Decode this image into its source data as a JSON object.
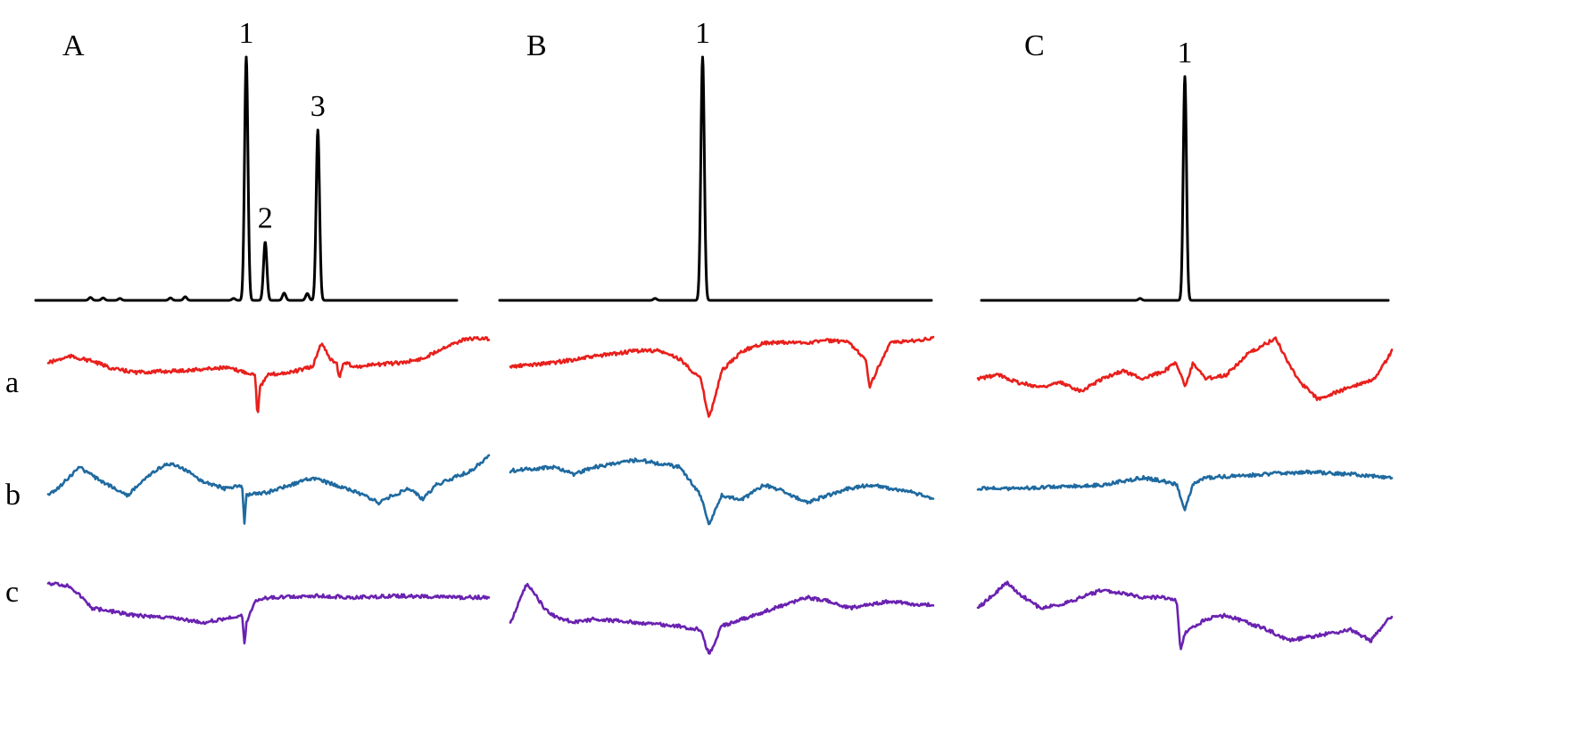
{
  "colors": {
    "chromatogram": "#000000",
    "trace_a": "#e8201c",
    "trace_b": "#1f6aa0",
    "trace_c": "#6a22b0"
  },
  "chart_data": {
    "type": "line",
    "xlabel": "",
    "ylabel": "",
    "grid": false,
    "axes_visible": false,
    "row_labels": [
      "a",
      "b",
      "c"
    ],
    "panels": [
      {
        "label": "A",
        "chromatogram": {
          "peaks": [
            {
              "label": "1",
              "position": 0.5,
              "height": 1.0
            },
            {
              "label": "2",
              "position": 0.545,
              "height": 0.24
            },
            {
              "label": "3",
              "position": 0.67,
              "height": 0.7
            }
          ],
          "minor_peaks": [
            {
              "position": 0.13,
              "height": 0.012
            },
            {
              "position": 0.16,
              "height": 0.01
            },
            {
              "position": 0.2,
              "height": 0.008
            },
            {
              "position": 0.32,
              "height": 0.01
            },
            {
              "position": 0.355,
              "height": 0.015
            },
            {
              "position": 0.47,
              "height": 0.008
            },
            {
              "position": 0.59,
              "height": 0.03
            },
            {
              "position": 0.645,
              "height": 0.028
            }
          ]
        },
        "traces": [
          {
            "row": "a",
            "points": [
              [
                0,
                0.3
              ],
              [
                0.05,
                0.22
              ],
              [
                0.1,
                0.28
              ],
              [
                0.15,
                0.38
              ],
              [
                0.2,
                0.42
              ],
              [
                0.3,
                0.4
              ],
              [
                0.4,
                0.36
              ],
              [
                0.45,
                0.42
              ],
              [
                0.47,
                0.45
              ],
              [
                0.475,
                1.0
              ],
              [
                0.48,
                0.6
              ],
              [
                0.5,
                0.45
              ],
              [
                0.55,
                0.42
              ],
              [
                0.6,
                0.35
              ],
              [
                0.62,
                0.05
              ],
              [
                0.64,
                0.25
              ],
              [
                0.655,
                0.3
              ],
              [
                0.66,
                0.5
              ],
              [
                0.67,
                0.3
              ],
              [
                0.7,
                0.35
              ],
              [
                0.75,
                0.32
              ],
              [
                0.8,
                0.3
              ],
              [
                0.85,
                0.25
              ],
              [
                0.9,
                0.1
              ],
              [
                0.95,
                0.0
              ],
              [
                1.0,
                0.0
              ]
            ]
          },
          {
            "row": "b",
            "points": [
              [
                0,
                0.55
              ],
              [
                0.03,
                0.4
              ],
              [
                0.07,
                0.15
              ],
              [
                0.12,
                0.35
              ],
              [
                0.18,
                0.55
              ],
              [
                0.22,
                0.3
              ],
              [
                0.27,
                0.1
              ],
              [
                0.3,
                0.15
              ],
              [
                0.35,
                0.35
              ],
              [
                0.4,
                0.45
              ],
              [
                0.44,
                0.4
              ],
              [
                0.445,
                0.95
              ],
              [
                0.45,
                0.55
              ],
              [
                0.5,
                0.5
              ],
              [
                0.55,
                0.4
              ],
              [
                0.6,
                0.3
              ],
              [
                0.65,
                0.4
              ],
              [
                0.7,
                0.5
              ],
              [
                0.75,
                0.65
              ],
              [
                0.78,
                0.55
              ],
              [
                0.82,
                0.45
              ],
              [
                0.85,
                0.6
              ],
              [
                0.88,
                0.4
              ],
              [
                0.92,
                0.3
              ],
              [
                0.96,
                0.2
              ],
              [
                1.0,
                0.0
              ]
            ]
          },
          {
            "row": "c",
            "points": [
              [
                0,
                0.0
              ],
              [
                0.05,
                0.05
              ],
              [
                0.1,
                0.35
              ],
              [
                0.15,
                0.4
              ],
              [
                0.2,
                0.45
              ],
              [
                0.3,
                0.5
              ],
              [
                0.35,
                0.55
              ],
              [
                0.4,
                0.5
              ],
              [
                0.44,
                0.45
              ],
              [
                0.445,
                0.85
              ],
              [
                0.45,
                0.55
              ],
              [
                0.47,
                0.25
              ],
              [
                0.5,
                0.2
              ],
              [
                0.6,
                0.18
              ],
              [
                0.7,
                0.2
              ],
              [
                0.8,
                0.18
              ],
              [
                0.9,
                0.2
              ],
              [
                1.0,
                0.2
              ]
            ]
          }
        ]
      },
      {
        "label": "B",
        "chromatogram": {
          "peaks": [
            {
              "label": "1",
              "position": 0.47,
              "height": 1.0
            }
          ],
          "minor_peaks": [
            {
              "position": 0.36,
              "height": 0.008
            }
          ]
        },
        "traces": [
          {
            "row": "a",
            "points": [
              [
                0,
                0.35
              ],
              [
                0.1,
                0.3
              ],
              [
                0.2,
                0.22
              ],
              [
                0.3,
                0.15
              ],
              [
                0.35,
                0.15
              ],
              [
                0.4,
                0.25
              ],
              [
                0.45,
                0.5
              ],
              [
                0.47,
                1.0
              ],
              [
                0.5,
                0.4
              ],
              [
                0.55,
                0.15
              ],
              [
                0.6,
                0.05
              ],
              [
                0.7,
                0.05
              ],
              [
                0.75,
                0.02
              ],
              [
                0.8,
                0.05
              ],
              [
                0.84,
                0.25
              ],
              [
                0.85,
                0.6
              ],
              [
                0.87,
                0.35
              ],
              [
                0.9,
                0.05
              ],
              [
                1.0,
                0.0
              ]
            ]
          },
          {
            "row": "b",
            "points": [
              [
                0,
                0.2
              ],
              [
                0.1,
                0.15
              ],
              [
                0.15,
                0.25
              ],
              [
                0.2,
                0.15
              ],
              [
                0.25,
                0.1
              ],
              [
                0.3,
                0.05
              ],
              [
                0.35,
                0.1
              ],
              [
                0.4,
                0.15
              ],
              [
                0.42,
                0.3
              ],
              [
                0.45,
                0.55
              ],
              [
                0.47,
                0.95
              ],
              [
                0.5,
                0.55
              ],
              [
                0.55,
                0.6
              ],
              [
                0.6,
                0.4
              ],
              [
                0.65,
                0.5
              ],
              [
                0.7,
                0.65
              ],
              [
                0.75,
                0.55
              ],
              [
                0.8,
                0.45
              ],
              [
                0.85,
                0.4
              ],
              [
                0.9,
                0.45
              ],
              [
                0.95,
                0.5
              ],
              [
                1.0,
                0.6
              ]
            ]
          },
          {
            "row": "c",
            "points": [
              [
                0,
                0.55
              ],
              [
                0.04,
                0.0
              ],
              [
                0.08,
                0.35
              ],
              [
                0.1,
                0.45
              ],
              [
                0.15,
                0.55
              ],
              [
                0.2,
                0.5
              ],
              [
                0.3,
                0.55
              ],
              [
                0.4,
                0.6
              ],
              [
                0.45,
                0.65
              ],
              [
                0.47,
                1.0
              ],
              [
                0.5,
                0.6
              ],
              [
                0.55,
                0.5
              ],
              [
                0.6,
                0.4
              ],
              [
                0.65,
                0.3
              ],
              [
                0.7,
                0.2
              ],
              [
                0.75,
                0.25
              ],
              [
                0.8,
                0.35
              ],
              [
                0.85,
                0.3
              ],
              [
                0.9,
                0.25
              ],
              [
                0.95,
                0.3
              ],
              [
                1.0,
                0.3
              ]
            ]
          }
        ]
      },
      {
        "label": "C",
        "chromatogram": {
          "peaks": [
            {
              "label": "1",
              "position": 0.5,
              "height": 0.92
            }
          ],
          "minor_peaks": [
            {
              "position": 0.39,
              "height": 0.008
            }
          ]
        },
        "traces": [
          {
            "row": "a",
            "points": [
              [
                0,
                0.5
              ],
              [
                0.05,
                0.45
              ],
              [
                0.1,
                0.55
              ],
              [
                0.15,
                0.6
              ],
              [
                0.2,
                0.55
              ],
              [
                0.25,
                0.65
              ],
              [
                0.3,
                0.5
              ],
              [
                0.35,
                0.4
              ],
              [
                0.4,
                0.5
              ],
              [
                0.45,
                0.4
              ],
              [
                0.48,
                0.3
              ],
              [
                0.5,
                0.6
              ],
              [
                0.52,
                0.3
              ],
              [
                0.55,
                0.5
              ],
              [
                0.6,
                0.45
              ],
              [
                0.65,
                0.2
              ],
              [
                0.7,
                0.05
              ],
              [
                0.72,
                0.0
              ],
              [
                0.75,
                0.3
              ],
              [
                0.78,
                0.55
              ],
              [
                0.82,
                0.75
              ],
              [
                0.85,
                0.7
              ],
              [
                0.9,
                0.6
              ],
              [
                0.93,
                0.55
              ],
              [
                0.96,
                0.5
              ],
              [
                1.0,
                0.15
              ]
            ]
          },
          {
            "row": "b",
            "points": [
              [
                0,
                0.45
              ],
              [
                0.1,
                0.45
              ],
              [
                0.2,
                0.42
              ],
              [
                0.3,
                0.4
              ],
              [
                0.35,
                0.35
              ],
              [
                0.4,
                0.3
              ],
              [
                0.45,
                0.35
              ],
              [
                0.48,
                0.4
              ],
              [
                0.5,
                0.75
              ],
              [
                0.52,
                0.4
              ],
              [
                0.55,
                0.3
              ],
              [
                0.6,
                0.28
              ],
              [
                0.7,
                0.25
              ],
              [
                0.8,
                0.22
              ],
              [
                0.9,
                0.25
              ],
              [
                1.0,
                0.3
              ]
            ]
          },
          {
            "row": "c",
            "points": [
              [
                0,
                0.35
              ],
              [
                0.03,
                0.2
              ],
              [
                0.07,
                0.0
              ],
              [
                0.1,
                0.15
              ],
              [
                0.15,
                0.35
              ],
              [
                0.2,
                0.3
              ],
              [
                0.25,
                0.2
              ],
              [
                0.3,
                0.1
              ],
              [
                0.35,
                0.15
              ],
              [
                0.4,
                0.2
              ],
              [
                0.45,
                0.2
              ],
              [
                0.48,
                0.25
              ],
              [
                0.49,
                0.95
              ],
              [
                0.5,
                0.7
              ],
              [
                0.55,
                0.5
              ],
              [
                0.6,
                0.45
              ],
              [
                0.65,
                0.55
              ],
              [
                0.7,
                0.65
              ],
              [
                0.75,
                0.8
              ],
              [
                0.8,
                0.75
              ],
              [
                0.85,
                0.7
              ],
              [
                0.9,
                0.65
              ],
              [
                0.95,
                0.8
              ],
              [
                1.0,
                0.45
              ]
            ]
          }
        ]
      }
    ]
  }
}
